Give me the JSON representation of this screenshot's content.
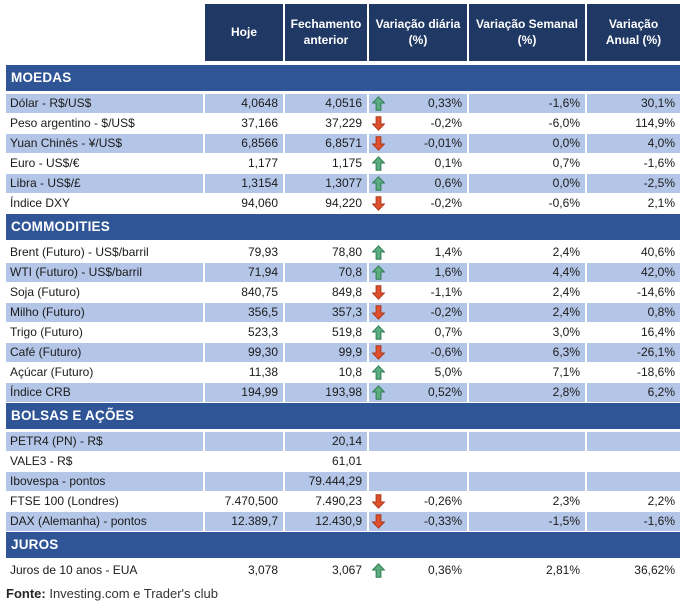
{
  "header": {
    "columns": [
      {
        "label": "Hoje"
      },
      {
        "label": "Fechamento anterior"
      },
      {
        "label": "Variação diária (%)"
      },
      {
        "label": "Variação Semanal (%)"
      },
      {
        "label": "Variação Anual (%)"
      }
    ]
  },
  "sections": [
    {
      "title": "MOEDAS",
      "shade_first": true,
      "rows": [
        {
          "label": "Dólar - R$/US$",
          "hoje": "4,0648",
          "fechamento": "4,0516",
          "trend": "up",
          "var_diaria": "0,33%",
          "var_semanal": "-1,6%",
          "var_anual": "30,1%"
        },
        {
          "label": "Peso argentino - $/US$",
          "hoje": "37,166",
          "fechamento": "37,229",
          "trend": "down",
          "var_diaria": "-0,2%",
          "var_semanal": "-6,0%",
          "var_anual": "114,9%"
        },
        {
          "label": "Yuan Chinês - ¥/US$",
          "hoje": "6,8566",
          "fechamento": "6,8571",
          "trend": "down",
          "var_diaria": "-0,01%",
          "var_semanal": "0,0%",
          "var_anual": "4,0%"
        },
        {
          "label": "Euro - US$/€",
          "hoje": "1,177",
          "fechamento": "1,175",
          "trend": "up",
          "var_diaria": "0,1%",
          "var_semanal": "0,7%",
          "var_anual": "-1,6%"
        },
        {
          "label": "Libra - US$/£",
          "hoje": "1,3154",
          "fechamento": "1,3077",
          "trend": "up",
          "var_diaria": "0,6%",
          "var_semanal": "0,0%",
          "var_anual": "-2,5%"
        },
        {
          "label": "Índice DXY",
          "hoje": "94,060",
          "fechamento": "94,220",
          "trend": "down",
          "var_diaria": "-0,2%",
          "var_semanal": "-0,6%",
          "var_anual": "2,1%"
        }
      ]
    },
    {
      "title": "COMMODITIES",
      "shade_first": false,
      "rows": [
        {
          "label": "Brent (Futuro) - US$/barril",
          "hoje": "79,93",
          "fechamento": "78,80",
          "trend": "up",
          "var_diaria": "1,4%",
          "var_semanal": "2,4%",
          "var_anual": "40,6%"
        },
        {
          "label": "WTI (Futuro) - US$/barril",
          "hoje": "71,94",
          "fechamento": "70,8",
          "trend": "up",
          "var_diaria": "1,6%",
          "var_semanal": "4,4%",
          "var_anual": "42,0%"
        },
        {
          "label": "Soja (Futuro)",
          "hoje": "840,75",
          "fechamento": "849,8",
          "trend": "down",
          "var_diaria": "-1,1%",
          "var_semanal": "2,4%",
          "var_anual": "-14,6%"
        },
        {
          "label": "Milho (Futuro)",
          "hoje": "356,5",
          "fechamento": "357,3",
          "trend": "down",
          "var_diaria": "-0,2%",
          "var_semanal": "2,4%",
          "var_anual": "0,8%"
        },
        {
          "label": "Trigo (Futuro)",
          "hoje": "523,3",
          "fechamento": "519,8",
          "trend": "up",
          "var_diaria": "0,7%",
          "var_semanal": "3,0%",
          "var_anual": "16,4%"
        },
        {
          "label": "Café (Futuro)",
          "hoje": "99,30",
          "fechamento": "99,9",
          "trend": "down",
          "var_diaria": "-0,6%",
          "var_semanal": "6,3%",
          "var_anual": "-26,1%"
        },
        {
          "label": "Açúcar (Futuro)",
          "hoje": "11,38",
          "fechamento": "10,8",
          "trend": "up",
          "var_diaria": "5,0%",
          "var_semanal": "7,1%",
          "var_anual": "-18,6%"
        },
        {
          "label": "Índice CRB",
          "hoje": "194,99",
          "fechamento": "193,98",
          "trend": "up",
          "var_diaria": "0,52%",
          "var_semanal": "2,8%",
          "var_anual": "6,2%"
        }
      ]
    },
    {
      "title": "BOLSAS E AÇÕES",
      "shade_first": true,
      "rows": [
        {
          "label": "PETR4 (PN) - R$",
          "hoje": "",
          "fechamento": "20,14",
          "trend": "",
          "var_diaria": "",
          "var_semanal": "",
          "var_anual": ""
        },
        {
          "label": "VALE3 - R$",
          "hoje": "",
          "fechamento": "61,01",
          "trend": "",
          "var_diaria": "",
          "var_semanal": "",
          "var_anual": ""
        },
        {
          "label": "Ibovespa - pontos",
          "hoje": "",
          "fechamento": "79.444,29",
          "trend": "",
          "var_diaria": "",
          "var_semanal": "",
          "var_anual": ""
        },
        {
          "label": "FTSE 100 (Londres)",
          "hoje": "7.470,500",
          "fechamento": "7.490,23",
          "trend": "down",
          "var_diaria": "-0,26%",
          "var_semanal": "2,3%",
          "var_anual": "2,2%"
        },
        {
          "label": "DAX (Alemanha) - pontos",
          "hoje": "12.389,7",
          "fechamento": "12.430,9",
          "trend": "down",
          "var_diaria": "-0,33%",
          "var_semanal": "-1,5%",
          "var_anual": "-1,6%"
        }
      ]
    },
    {
      "title": "JUROS",
      "shade_first": false,
      "rows": [
        {
          "label": "Juros de 10 anos - EUA",
          "hoje": "3,078",
          "fechamento": "3,067",
          "trend": "up",
          "var_diaria": "0,36%",
          "var_semanal": "2,81%",
          "var_anual": "36,62%"
        }
      ]
    }
  ],
  "footer": {
    "label": "Fonte:",
    "text": " Investing.com e Trader's club"
  },
  "colors": {
    "header_bg": "#1F3864",
    "section_bg": "#2F5597",
    "stripe_bg": "#B4C6E7",
    "up_fill": "#5CAC80",
    "up_stroke": "#2E7D53",
    "down_fill": "#E0502D",
    "down_stroke": "#A93A1E"
  }
}
